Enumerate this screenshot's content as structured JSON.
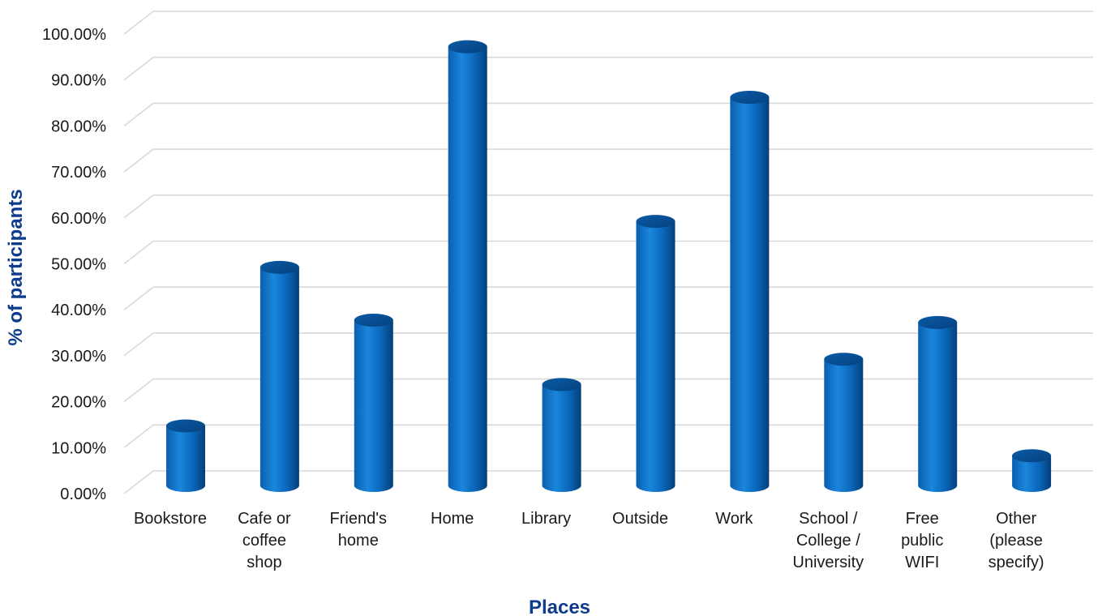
{
  "chart_data": {
    "type": "bar",
    "style": "3d-cylinder",
    "title": "",
    "xlabel": "Places",
    "ylabel": "% of participants",
    "ylim": [
      0,
      100
    ],
    "yticks": [
      0,
      10,
      20,
      30,
      40,
      50,
      60,
      70,
      80,
      90,
      100
    ],
    "ytick_labels": [
      "0.00%",
      "10.00%",
      "20.00%",
      "30.00%",
      "40.00%",
      "50.00%",
      "60.00%",
      "70.00%",
      "80.00%",
      "90.00%",
      "100.00%"
    ],
    "categories": [
      "Bookstore",
      "Cafe or coffee shop",
      "Friend's home",
      "Home",
      "Library",
      "Outside",
      "Work",
      "School / College / University",
      "Free public WIFI",
      "Other (please specify)"
    ],
    "category_label_lines": [
      [
        "Bookstore"
      ],
      [
        "Cafe or",
        "coffee",
        "shop"
      ],
      [
        "Friend's",
        "home"
      ],
      [
        "Home"
      ],
      [
        "Library"
      ],
      [
        "Outside"
      ],
      [
        "Work"
      ],
      [
        "School /",
        "College /",
        "University"
      ],
      [
        "Free",
        "public",
        "WIFI"
      ],
      [
        "Other",
        "(please",
        "specify)"
      ]
    ],
    "values": [
      13.5,
      48.0,
      36.5,
      96.0,
      22.5,
      58.0,
      85.0,
      28.0,
      36.0,
      7.0
    ],
    "grid": true,
    "legend": "none",
    "colors": {
      "bar": "#0a6cc2",
      "bar_dark": "#04467f",
      "bar_light": "#2f8fe0",
      "axis_title": "#0f3b8c",
      "grid": "#d9d9d9"
    }
  }
}
